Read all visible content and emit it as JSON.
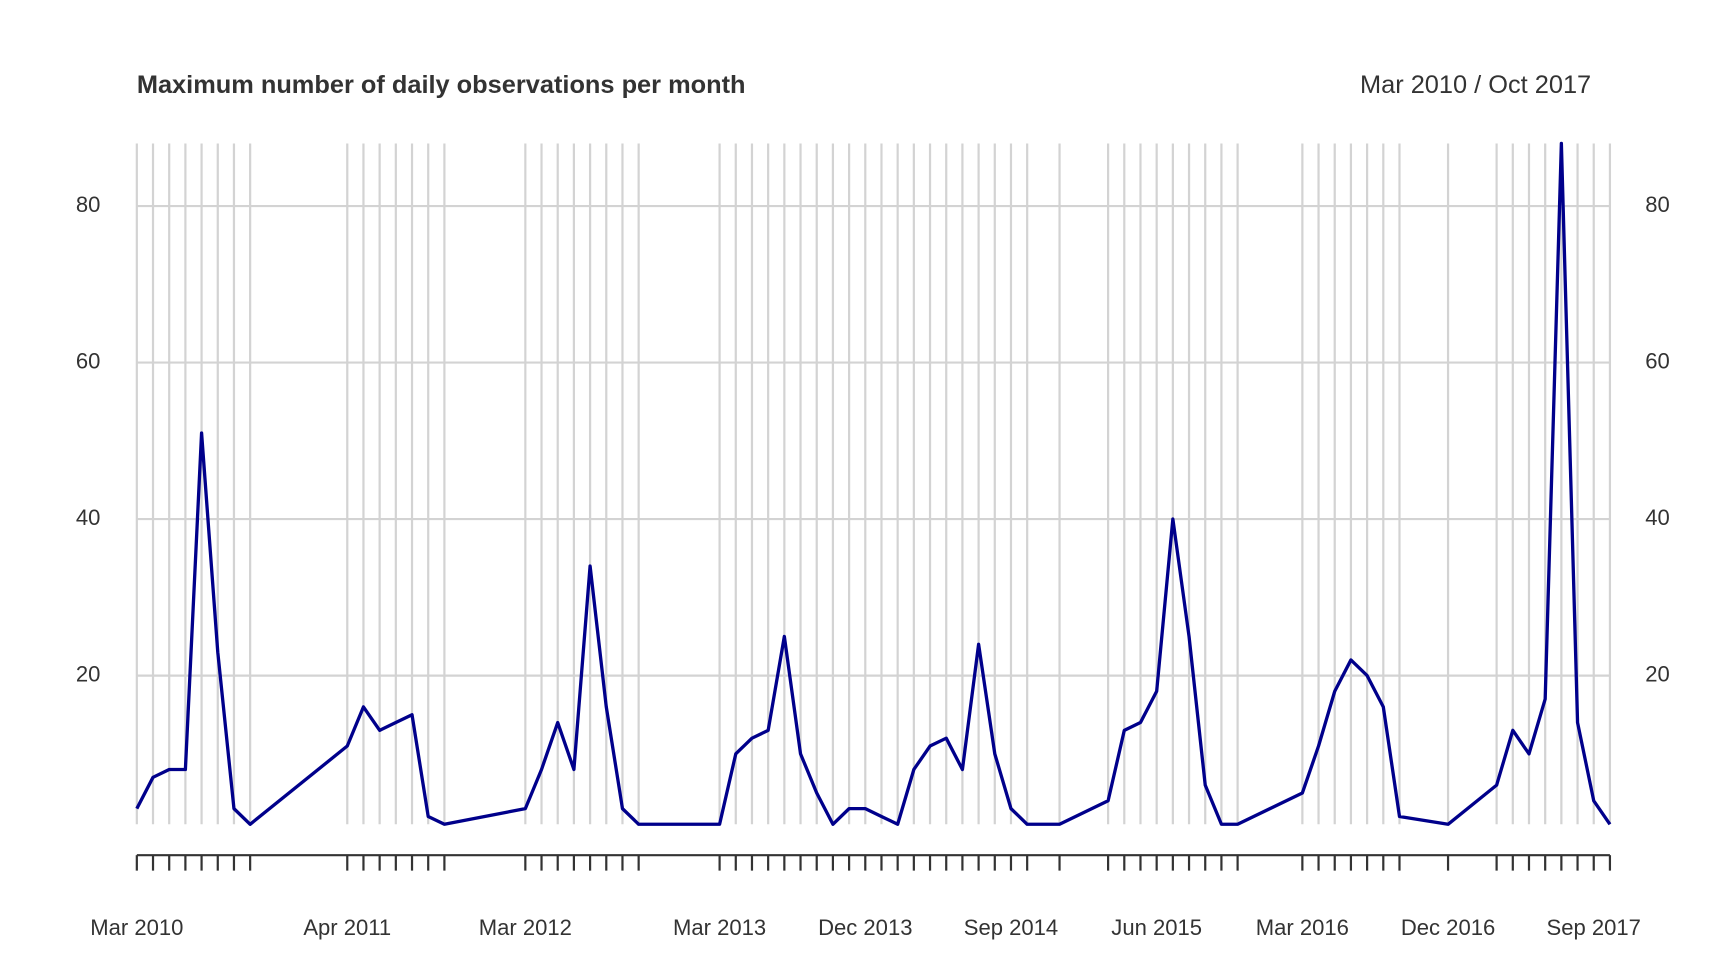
{
  "chart_data": {
    "type": "line",
    "title": "Maximum number of daily observations per month",
    "date_range": "Mar 2010 / Oct 2017",
    "x": [
      "Mar 2010",
      "Apr 2010",
      "May 2010",
      "Jun 2010",
      "Jul 2010",
      "Aug 2010",
      "Sep 2010",
      "Oct 2010",
      "Apr 2011",
      "May 2011",
      "Jun 2011",
      "Jul 2011",
      "Aug 2011",
      "Sep 2011",
      "Oct 2011",
      "Mar 2012",
      "Apr 2012",
      "May 2012",
      "Jun 2012",
      "Jul 2012",
      "Aug 2012",
      "Sep 2012",
      "Oct 2012",
      "Mar 2013",
      "Apr 2013",
      "May 2013",
      "Jun 2013",
      "Jul 2013",
      "Aug 2013",
      "Sep 2013",
      "Oct 2013",
      "Nov 2013",
      "Dec 2013",
      "Jan 2014",
      "Feb 2014",
      "Mar 2014",
      "Apr 2014",
      "May 2014",
      "Jun 2014",
      "Jul 2014",
      "Aug 2014",
      "Sep 2014",
      "Oct 2014",
      "Dec 2014",
      "Mar 2015",
      "Apr 2015",
      "May 2015",
      "Jun 2015",
      "Jul 2015",
      "Aug 2015",
      "Sep 2015",
      "Oct 2015",
      "Nov 2015",
      "Mar 2016",
      "Apr 2016",
      "May 2016",
      "Jun 2016",
      "Jul 2016",
      "Aug 2016",
      "Sep 2016",
      "Dec 2016",
      "Mar 2017",
      "Apr 2017",
      "May 2017",
      "Jun 2017",
      "Jul 2017",
      "Aug 2017",
      "Sep 2017",
      "Oct 2017"
    ],
    "series": [
      {
        "name": "observations",
        "color": "#00008b",
        "values": [
          3,
          7,
          8,
          8,
          51,
          23,
          3,
          1,
          11,
          16,
          13,
          14,
          15,
          2,
          1,
          3,
          8,
          14,
          8,
          34,
          16,
          3,
          1,
          1,
          10,
          12,
          13,
          25,
          10,
          5,
          1,
          3,
          3,
          2,
          1,
          8,
          11,
          12,
          8,
          24,
          10,
          3,
          1,
          1,
          4,
          13,
          14,
          18,
          40,
          25,
          6,
          1,
          1,
          5,
          11,
          18,
          22,
          20,
          16,
          2,
          1,
          6,
          13,
          10,
          17,
          88,
          14,
          4,
          1
        ]
      }
    ],
    "xlim": [
      "Mar 2010",
      "Oct 2017"
    ],
    "xticks": [
      "Mar 2010",
      "Apr 2011",
      "Mar 2012",
      "Mar 2013",
      "Dec 2013",
      "Sep 2014",
      "Jun 2015",
      "Mar 2016",
      "Dec 2016",
      "Sep 2017"
    ],
    "ylim": [
      1,
      88
    ],
    "yticks": [
      20,
      40,
      60,
      80
    ],
    "grid": true
  }
}
